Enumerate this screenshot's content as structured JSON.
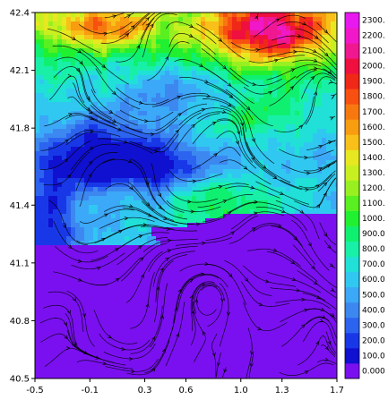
{
  "chart_data": {
    "type": "heatmap",
    "title": "",
    "xlabel": "",
    "ylabel": "",
    "xlim": [
      -0.5,
      1.7
    ],
    "ylim": [
      40.5,
      42.4
    ],
    "x_ticks": [
      "-0.5",
      "-0.1",
      "0.3",
      "0.6",
      "1.0",
      "1.3",
      "1.7"
    ],
    "y_ticks": [
      "40.5",
      "40.8",
      "41.1",
      "41.4",
      "41.8",
      "42.1",
      "42.4"
    ],
    "colorbar": {
      "levels": [
        "0.000",
        "100.0",
        "200.0",
        "300.0",
        "400.0",
        "500.0",
        "600.0",
        "700.0",
        "800.0",
        "900.0",
        "1000.",
        "1100.",
        "1200.",
        "1300.",
        "1400.",
        "1500.",
        "1600.",
        "1700.",
        "1800.",
        "1900.",
        "2000.",
        "2100.",
        "2200.",
        "2300."
      ],
      "colors": [
        "#7a10f0",
        "#1010d0",
        "#1838e8",
        "#2c64f0",
        "#3c88f0",
        "#3ca8f8",
        "#30c8f0",
        "#20e0d8",
        "#18f0a8",
        "#10f070",
        "#20f030",
        "#58f020",
        "#98f020",
        "#c8f020",
        "#e8e820",
        "#f8c018",
        "#f89c10",
        "#f87810",
        "#f85010",
        "#f02818",
        "#f01040",
        "#f01890",
        "#f018c8",
        "#e818f0"
      ]
    },
    "overlay": "streamlines",
    "grid": false
  }
}
